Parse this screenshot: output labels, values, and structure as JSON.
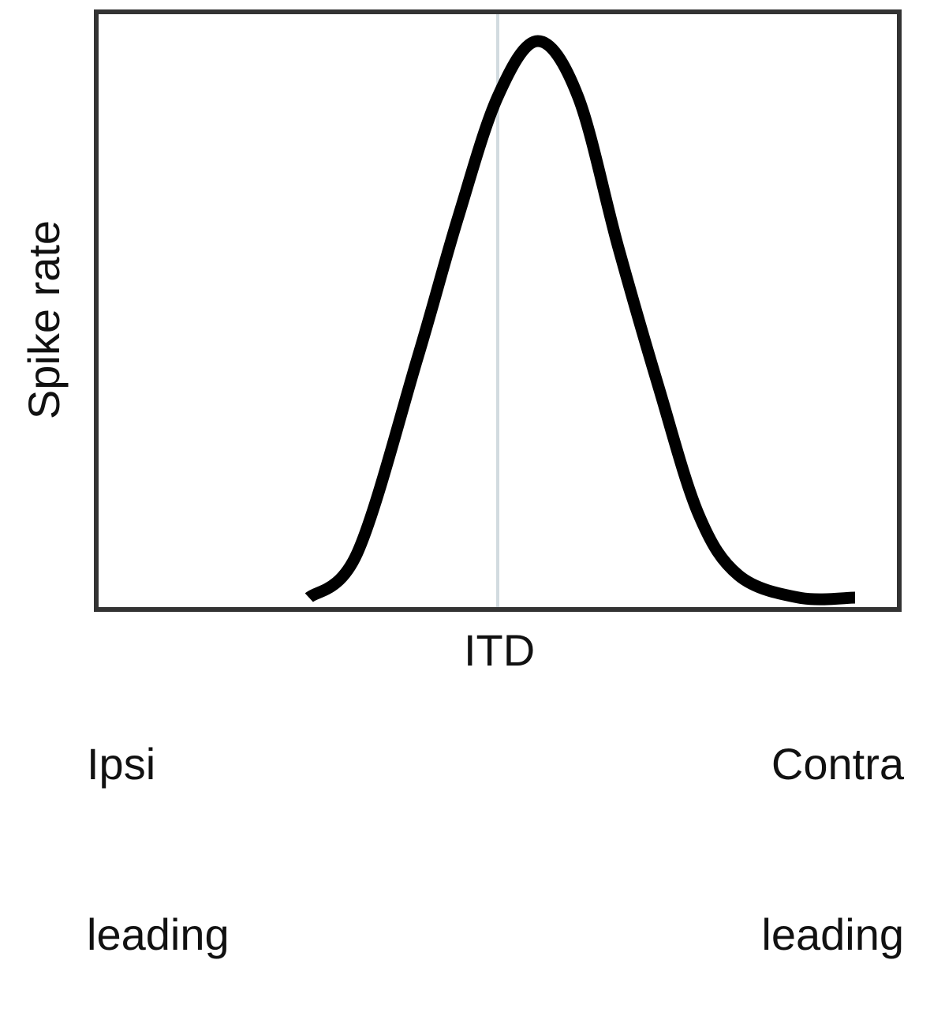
{
  "chart_data": {
    "type": "line",
    "title": "",
    "ylabel": "Spike rate",
    "xlabel": "ITD",
    "x_tick_labels": {
      "left": [
        "Ipsi",
        "leading"
      ],
      "center": "ITD",
      "right": [
        "Contra",
        "leading"
      ]
    },
    "xlim": [
      -1,
      1
    ],
    "ylim": [
      0,
      1
    ],
    "reference_line": {
      "x": 0,
      "label": ""
    },
    "series": [
      {
        "x": [
          -0.47,
          -0.35,
          -0.2,
          -0.1,
          0,
          0.1,
          0.2,
          0.3,
          0.4,
          0.5,
          0.6,
          0.75,
          0.89
        ],
        "y": [
          0.0,
          0.08,
          0.43,
          0.68,
          0.9,
          1.0,
          0.9,
          0.63,
          0.38,
          0.15,
          0.04,
          0.0,
          0.0
        ]
      }
    ],
    "grid": false,
    "colors": {
      "curve": "#000000",
      "frame": "#333333",
      "reference_line": "#d2dbe0"
    }
  }
}
